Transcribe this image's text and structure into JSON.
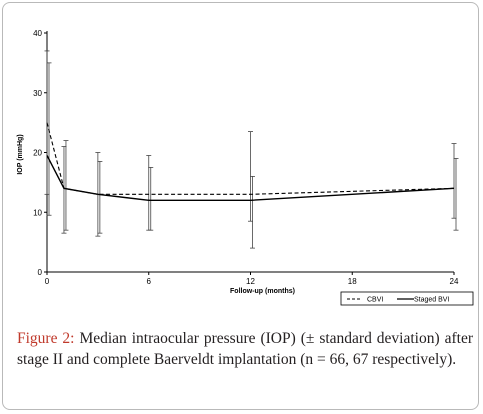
{
  "chart_data": {
    "type": "line",
    "xlabel": "Follow-up (months)",
    "ylabel": "IOP (mmHg)",
    "xlim": [
      0,
      24
    ],
    "ylim": [
      0,
      40
    ],
    "xticks": [
      0,
      6,
      12,
      18,
      24
    ],
    "yticks": [
      0,
      10,
      20,
      30,
      40
    ],
    "legend_position": "bottom-right",
    "series": [
      {
        "name": "CBVI",
        "style": "dashed",
        "color": "#000000",
        "x": [
          0,
          1,
          3,
          6,
          12,
          24
        ],
        "y": [
          25,
          14,
          13,
          13,
          13,
          14
        ],
        "err_low": [
          13,
          6.5,
          6,
          7,
          8.5,
          9
        ],
        "err_high": [
          37,
          21,
          20,
          19.5,
          23.5,
          21.5
        ]
      },
      {
        "name": "Staged BVI",
        "style": "solid",
        "color": "#000000",
        "x": [
          0,
          1,
          3,
          6,
          12,
          24
        ],
        "y": [
          19.5,
          14,
          13,
          12,
          12,
          14
        ],
        "err_low": [
          9.5,
          7,
          6.5,
          7,
          4,
          7
        ],
        "err_high": [
          35,
          22,
          18.5,
          17.5,
          16,
          19
        ]
      }
    ]
  },
  "caption": {
    "label": "Figure 2:",
    "text": " Median intraocular pressure (IOP) (± standard deviation) after stage II and complete Baerveldt implantation (n = 66, 67 respectively)."
  }
}
